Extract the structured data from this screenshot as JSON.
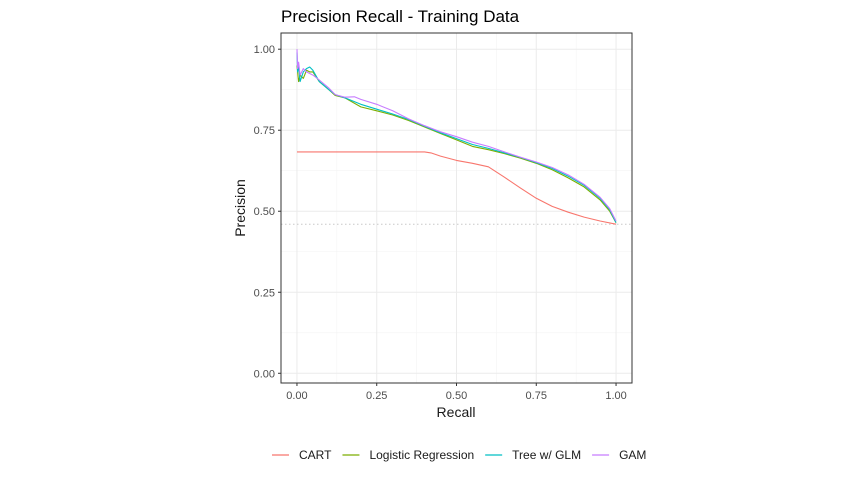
{
  "chart_data": {
    "type": "line",
    "title": "Precision Recall - Training Data",
    "xlabel": "Recall",
    "ylabel": "Precision",
    "xlim": [
      -0.05,
      1.05
    ],
    "ylim": [
      -0.03,
      1.05
    ],
    "x_ticks": [
      0,
      0.25,
      0.5,
      0.75,
      1
    ],
    "x_tick_labels": [
      "0.00",
      "0.25",
      "0.50",
      "0.75",
      "1.00"
    ],
    "y_ticks": [
      0,
      0.25,
      0.5,
      0.75,
      1
    ],
    "y_tick_labels": [
      "0.00",
      "0.25",
      "0.50",
      "0.75",
      "1.00"
    ],
    "grid": true,
    "legend_position": "bottom",
    "baseline": 0.46,
    "series": [
      {
        "name": "CART",
        "color": "#F8766D",
        "x": [
          0,
          0.1,
          0.2,
          0.3,
          0.4,
          0.42,
          0.45,
          0.5,
          0.55,
          0.6,
          0.65,
          0.7,
          0.75,
          0.8,
          0.85,
          0.9,
          0.95,
          1.0
        ],
        "y": [
          0.683,
          0.683,
          0.683,
          0.683,
          0.683,
          0.68,
          0.67,
          0.657,
          0.648,
          0.637,
          0.605,
          0.572,
          0.54,
          0.515,
          0.497,
          0.482,
          0.47,
          0.46
        ]
      },
      {
        "name": "Logistic Regression",
        "color": "#7CAE00",
        "x": [
          0,
          0.005,
          0.01,
          0.02,
          0.03,
          0.04,
          0.05,
          0.07,
          0.1,
          0.12,
          0.15,
          0.2,
          0.25,
          0.3,
          0.35,
          0.4,
          0.45,
          0.5,
          0.55,
          0.6,
          0.65,
          0.7,
          0.75,
          0.8,
          0.85,
          0.9,
          0.95,
          0.98,
          1.0
        ],
        "y": [
          0.95,
          0.9,
          0.92,
          0.91,
          0.935,
          0.93,
          0.93,
          0.9,
          0.875,
          0.857,
          0.85,
          0.822,
          0.81,
          0.797,
          0.78,
          0.76,
          0.74,
          0.72,
          0.7,
          0.69,
          0.678,
          0.664,
          0.648,
          0.628,
          0.603,
          0.575,
          0.535,
          0.5,
          0.465
        ]
      },
      {
        "name": "Tree w/ GLM",
        "color": "#00BFC4",
        "x": [
          0,
          0.002,
          0.005,
          0.01,
          0.02,
          0.03,
          0.04,
          0.05,
          0.07,
          0.1,
          0.12,
          0.15,
          0.2,
          0.25,
          0.3,
          0.35,
          0.4,
          0.45,
          0.5,
          0.55,
          0.6,
          0.65,
          0.7,
          0.75,
          0.8,
          0.85,
          0.9,
          0.95,
          0.98,
          1.0
        ],
        "y": [
          0.99,
          0.93,
          0.95,
          0.9,
          0.93,
          0.94,
          0.945,
          0.935,
          0.9,
          0.875,
          0.86,
          0.85,
          0.83,
          0.815,
          0.8,
          0.783,
          0.762,
          0.742,
          0.724,
          0.706,
          0.694,
          0.68,
          0.666,
          0.65,
          0.632,
          0.608,
          0.58,
          0.54,
          0.505,
          0.465
        ]
      },
      {
        "name": "GAM",
        "color": "#C77CFF",
        "x": [
          0,
          0.002,
          0.005,
          0.01,
          0.02,
          0.03,
          0.04,
          0.05,
          0.07,
          0.1,
          0.12,
          0.15,
          0.18,
          0.2,
          0.25,
          0.3,
          0.35,
          0.4,
          0.45,
          0.5,
          0.55,
          0.6,
          0.65,
          0.7,
          0.75,
          0.8,
          0.85,
          0.9,
          0.95,
          0.98,
          1.0
        ],
        "y": [
          1.0,
          0.94,
          0.96,
          0.92,
          0.94,
          0.93,
          0.925,
          0.92,
          0.905,
          0.88,
          0.86,
          0.852,
          0.853,
          0.845,
          0.83,
          0.81,
          0.785,
          0.764,
          0.745,
          0.73,
          0.713,
          0.7,
          0.683,
          0.667,
          0.652,
          0.635,
          0.612,
          0.583,
          0.543,
          0.508,
          0.47
        ]
      }
    ]
  }
}
